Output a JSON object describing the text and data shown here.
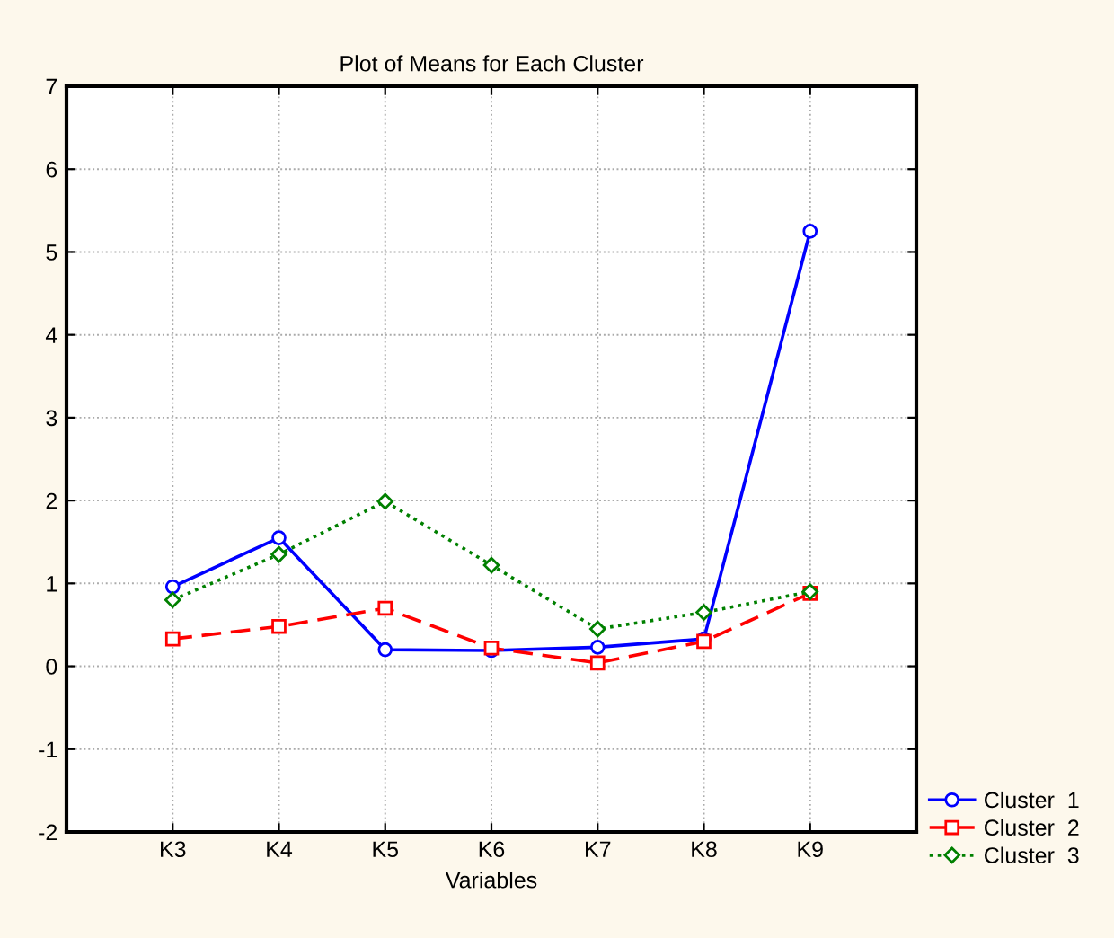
{
  "chart_data": {
    "type": "line",
    "title": "Plot of Means for Each Cluster",
    "xlabel": "Variables",
    "categories": [
      "K3",
      "K4",
      "K5",
      "K6",
      "K7",
      "K8",
      "K9"
    ],
    "series": [
      {
        "name": "Cluster  1",
        "color": "#0000ff",
        "marker": "circle",
        "line_style": "solid",
        "values": [
          0.96,
          1.55,
          0.2,
          0.19,
          0.23,
          0.33,
          5.25
        ]
      },
      {
        "name": "Cluster  2",
        "color": "#ff0000",
        "marker": "square",
        "line_style": "dashed",
        "values": [
          0.33,
          0.48,
          0.7,
          0.22,
          0.04,
          0.3,
          0.88
        ]
      },
      {
        "name": "Cluster  3",
        "color": "#008000",
        "marker": "diamond",
        "line_style": "dotted",
        "values": [
          0.8,
          1.35,
          1.99,
          1.22,
          0.45,
          0.65,
          0.9
        ]
      }
    ],
    "ylim": [
      -2,
      7
    ],
    "yticks": [
      -2,
      -1,
      0,
      1,
      2,
      3,
      4,
      5,
      6,
      7
    ],
    "grid": true,
    "legend": "bottom right"
  }
}
